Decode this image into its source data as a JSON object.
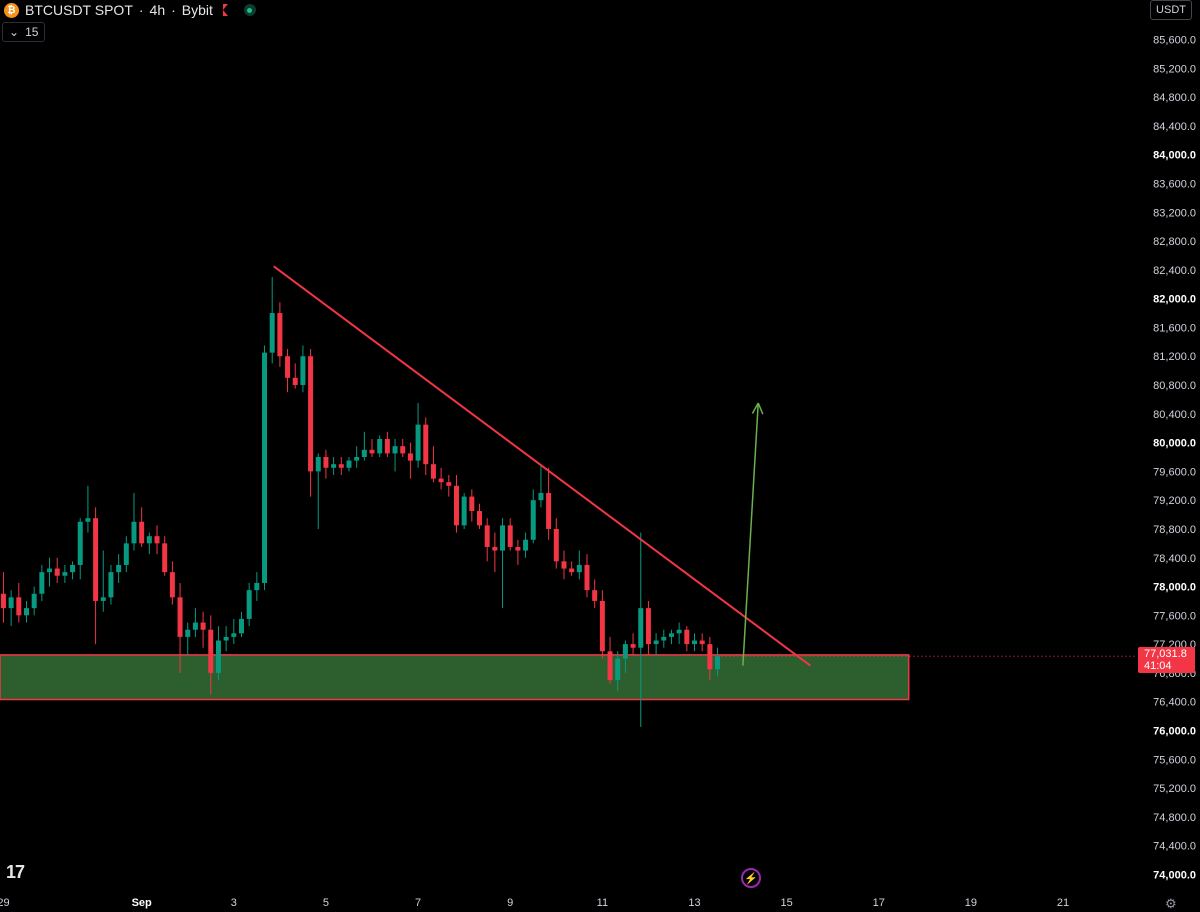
{
  "header": {
    "symbol": "BTCUSDT SPOT",
    "interval": "4h",
    "exchange": "Bybit",
    "separator": "·",
    "coin_glyph": "₿",
    "indicator_count": "15",
    "currency": "USDT",
    "logo": "17"
  },
  "colors": {
    "background": "#000000",
    "up": "#089981",
    "down": "#f23645",
    "zone_fill": "#2c5e2e",
    "zone_border": "#f23645",
    "trendline": "#f23645",
    "arrow": "#6ab04c",
    "axis_text": "#d1d4dc"
  },
  "chart_data": {
    "type": "candlestick",
    "title": "BTCUSDT SPOT · 4h · Bybit",
    "ylim": [
      73700,
      86150
    ],
    "y_ticks": [
      74000,
      74400,
      74800,
      75200,
      75600,
      76000,
      76400,
      76800,
      77200,
      77600,
      78000,
      78400,
      78800,
      79200,
      79600,
      80000,
      80400,
      80800,
      81200,
      81600,
      82000,
      82400,
      82800,
      83200,
      83600,
      84000,
      84400,
      84800,
      85200,
      85600
    ],
    "y_tick_labels": [
      "74,000.0",
      "74,400.0",
      "74,800.0",
      "75,200.0",
      "75,600.0",
      "76,000.0",
      "76,400.0",
      "76,800.0",
      "77,200.0",
      "77,600.0",
      "78,000.0",
      "78,400.0",
      "78,800.0",
      "79,200.0",
      "79,600.0",
      "80,000.0",
      "80,400.0",
      "80,800.0",
      "81,200.0",
      "81,600.0",
      "82,000.0",
      "82,400.0",
      "82,800.0",
      "83,200.0",
      "83,600.0",
      "84,000.0",
      "84,400.0",
      "84,800.0",
      "85,200.0",
      "85,600.0"
    ],
    "y_bold_ticks": [
      "74,000.0",
      "76,000.0",
      "78,000.0",
      "80,000.0",
      "82,000.0",
      "84,000.0"
    ],
    "x_ticks": [
      {
        "label": "29",
        "t": 0,
        "bold": false
      },
      {
        "label": "Sep",
        "t": 18,
        "bold": true
      },
      {
        "label": "3",
        "t": 30,
        "bold": false
      },
      {
        "label": "5",
        "t": 42,
        "bold": false
      },
      {
        "label": "7",
        "t": 54,
        "bold": false
      },
      {
        "label": "9",
        "t": 66,
        "bold": false
      },
      {
        "label": "11",
        "t": 78,
        "bold": false
      },
      {
        "label": "13",
        "t": 90,
        "bold": false
      },
      {
        "label": "15",
        "t": 102,
        "bold": false
      },
      {
        "label": "17",
        "t": 114,
        "bold": false
      },
      {
        "label": "19",
        "t": 126,
        "bold": false
      },
      {
        "label": "21",
        "t": 138,
        "bold": false
      }
    ],
    "x_range": [
      -0.45,
      147.5
    ],
    "candles": [
      {
        "t": 0,
        "o": 77900,
        "h": 78200,
        "l": 77500,
        "c": 77700
      },
      {
        "t": 1,
        "o": 77700,
        "h": 77950,
        "l": 77450,
        "c": 77850
      },
      {
        "t": 2,
        "o": 77850,
        "h": 78050,
        "l": 77500,
        "c": 77600
      },
      {
        "t": 3,
        "o": 77600,
        "h": 77800,
        "l": 77500,
        "c": 77700
      },
      {
        "t": 4,
        "o": 77700,
        "h": 78000,
        "l": 77600,
        "c": 77900
      },
      {
        "t": 5,
        "o": 77900,
        "h": 78300,
        "l": 77800,
        "c": 78200
      },
      {
        "t": 6,
        "o": 78200,
        "h": 78400,
        "l": 78000,
        "c": 78250
      },
      {
        "t": 7,
        "o": 78250,
        "h": 78400,
        "l": 78050,
        "c": 78150
      },
      {
        "t": 8,
        "o": 78150,
        "h": 78300,
        "l": 78050,
        "c": 78200
      },
      {
        "t": 9,
        "o": 78200,
        "h": 78350,
        "l": 78100,
        "c": 78300
      },
      {
        "t": 10,
        "o": 78300,
        "h": 78950,
        "l": 78100,
        "c": 78900
      },
      {
        "t": 11,
        "o": 78900,
        "h": 79400,
        "l": 78750,
        "c": 78950
      },
      {
        "t": 12,
        "o": 78950,
        "h": 79100,
        "l": 77200,
        "c": 77800
      },
      {
        "t": 13,
        "o": 77800,
        "h": 78500,
        "l": 77650,
        "c": 77850
      },
      {
        "t": 14,
        "o": 77850,
        "h": 78300,
        "l": 77750,
        "c": 78200
      },
      {
        "t": 15,
        "o": 78200,
        "h": 78450,
        "l": 78050,
        "c": 78300
      },
      {
        "t": 16,
        "o": 78300,
        "h": 78700,
        "l": 78200,
        "c": 78600
      },
      {
        "t": 17,
        "o": 78600,
        "h": 79300,
        "l": 78500,
        "c": 78900
      },
      {
        "t": 18,
        "o": 78900,
        "h": 79100,
        "l": 78550,
        "c": 78600
      },
      {
        "t": 19,
        "o": 78600,
        "h": 78750,
        "l": 78450,
        "c": 78700
      },
      {
        "t": 20,
        "o": 78700,
        "h": 78850,
        "l": 78450,
        "c": 78600
      },
      {
        "t": 21,
        "o": 78600,
        "h": 78700,
        "l": 78150,
        "c": 78200
      },
      {
        "t": 22,
        "o": 78200,
        "h": 78350,
        "l": 77750,
        "c": 77850
      },
      {
        "t": 23,
        "o": 77850,
        "h": 78050,
        "l": 76800,
        "c": 77300
      },
      {
        "t": 24,
        "o": 77300,
        "h": 77500,
        "l": 77050,
        "c": 77400
      },
      {
        "t": 25,
        "o": 77400,
        "h": 77700,
        "l": 77300,
        "c": 77500
      },
      {
        "t": 26,
        "o": 77500,
        "h": 77650,
        "l": 77150,
        "c": 77400
      },
      {
        "t": 27,
        "o": 77400,
        "h": 77600,
        "l": 76500,
        "c": 76800
      },
      {
        "t": 28,
        "o": 76800,
        "h": 77450,
        "l": 76700,
        "c": 77250
      },
      {
        "t": 29,
        "o": 77250,
        "h": 77450,
        "l": 77100,
        "c": 77300
      },
      {
        "t": 30,
        "o": 77300,
        "h": 77550,
        "l": 77200,
        "c": 77350
      },
      {
        "t": 31,
        "o": 77350,
        "h": 77650,
        "l": 77300,
        "c": 77550
      },
      {
        "t": 32,
        "o": 77550,
        "h": 78050,
        "l": 77450,
        "c": 77950
      },
      {
        "t": 33,
        "o": 77950,
        "h": 78200,
        "l": 77800,
        "c": 78050
      },
      {
        "t": 34,
        "o": 78050,
        "h": 81350,
        "l": 77950,
        "c": 81250
      },
      {
        "t": 35,
        "o": 81250,
        "h": 82300,
        "l": 81100,
        "c": 81800
      },
      {
        "t": 36,
        "o": 81800,
        "h": 81950,
        "l": 81050,
        "c": 81200
      },
      {
        "t": 37,
        "o": 81200,
        "h": 81300,
        "l": 80700,
        "c": 80900
      },
      {
        "t": 38,
        "o": 80900,
        "h": 81100,
        "l": 80750,
        "c": 80800
      },
      {
        "t": 39,
        "o": 80800,
        "h": 81350,
        "l": 80700,
        "c": 81200
      },
      {
        "t": 40,
        "o": 81200,
        "h": 81300,
        "l": 79250,
        "c": 79600
      },
      {
        "t": 41,
        "o": 79600,
        "h": 79850,
        "l": 78800,
        "c": 79800
      },
      {
        "t": 42,
        "o": 79800,
        "h": 79900,
        "l": 79500,
        "c": 79650
      },
      {
        "t": 43,
        "o": 79650,
        "h": 79800,
        "l": 79550,
        "c": 79700
      },
      {
        "t": 44,
        "o": 79700,
        "h": 79800,
        "l": 79550,
        "c": 79650
      },
      {
        "t": 45,
        "o": 79650,
        "h": 79800,
        "l": 79600,
        "c": 79750
      },
      {
        "t": 46,
        "o": 79750,
        "h": 79950,
        "l": 79650,
        "c": 79800
      },
      {
        "t": 47,
        "o": 79800,
        "h": 80150,
        "l": 79750,
        "c": 79900
      },
      {
        "t": 48,
        "o": 79900,
        "h": 80050,
        "l": 79800,
        "c": 79850
      },
      {
        "t": 49,
        "o": 79850,
        "h": 80100,
        "l": 79800,
        "c": 80050
      },
      {
        "t": 50,
        "o": 80050,
        "h": 80150,
        "l": 79800,
        "c": 79850
      },
      {
        "t": 51,
        "o": 79850,
        "h": 80050,
        "l": 79600,
        "c": 79950
      },
      {
        "t": 52,
        "o": 79950,
        "h": 80050,
        "l": 79800,
        "c": 79850
      },
      {
        "t": 53,
        "o": 79850,
        "h": 80000,
        "l": 79500,
        "c": 79750
      },
      {
        "t": 54,
        "o": 79750,
        "h": 80550,
        "l": 79650,
        "c": 80250
      },
      {
        "t": 55,
        "o": 80250,
        "h": 80350,
        "l": 79550,
        "c": 79700
      },
      {
        "t": 56,
        "o": 79700,
        "h": 79950,
        "l": 79450,
        "c": 79500
      },
      {
        "t": 57,
        "o": 79500,
        "h": 79650,
        "l": 79350,
        "c": 79450
      },
      {
        "t": 58,
        "o": 79450,
        "h": 79550,
        "l": 79250,
        "c": 79400
      },
      {
        "t": 59,
        "o": 79400,
        "h": 79550,
        "l": 78750,
        "c": 78850
      },
      {
        "t": 60,
        "o": 78850,
        "h": 79300,
        "l": 78800,
        "c": 79250
      },
      {
        "t": 61,
        "o": 79250,
        "h": 79350,
        "l": 78900,
        "c": 79050
      },
      {
        "t": 62,
        "o": 79050,
        "h": 79150,
        "l": 78800,
        "c": 78850
      },
      {
        "t": 63,
        "o": 78850,
        "h": 78950,
        "l": 78350,
        "c": 78550
      },
      {
        "t": 64,
        "o": 78550,
        "h": 78750,
        "l": 78200,
        "c": 78500
      },
      {
        "t": 65,
        "o": 78500,
        "h": 78950,
        "l": 77700,
        "c": 78850
      },
      {
        "t": 66,
        "o": 78850,
        "h": 78950,
        "l": 78500,
        "c": 78550
      },
      {
        "t": 67,
        "o": 78550,
        "h": 78650,
        "l": 78300,
        "c": 78500
      },
      {
        "t": 68,
        "o": 78500,
        "h": 78750,
        "l": 78400,
        "c": 78650
      },
      {
        "t": 69,
        "o": 78650,
        "h": 79350,
        "l": 78600,
        "c": 79200
      },
      {
        "t": 70,
        "o": 79200,
        "h": 79700,
        "l": 79100,
        "c": 79300
      },
      {
        "t": 71,
        "o": 79300,
        "h": 79650,
        "l": 78650,
        "c": 78800
      },
      {
        "t": 72,
        "o": 78800,
        "h": 78950,
        "l": 78250,
        "c": 78350
      },
      {
        "t": 73,
        "o": 78350,
        "h": 78500,
        "l": 78100,
        "c": 78250
      },
      {
        "t": 74,
        "o": 78250,
        "h": 78350,
        "l": 78150,
        "c": 78200
      },
      {
        "t": 75,
        "o": 78200,
        "h": 78500,
        "l": 78100,
        "c": 78300
      },
      {
        "t": 76,
        "o": 78300,
        "h": 78450,
        "l": 77850,
        "c": 77950
      },
      {
        "t": 77,
        "o": 77950,
        "h": 78100,
        "l": 77700,
        "c": 77800
      },
      {
        "t": 78,
        "o": 77800,
        "h": 77950,
        "l": 77000,
        "c": 77100
      },
      {
        "t": 79,
        "o": 77100,
        "h": 77300,
        "l": 76650,
        "c": 76700
      },
      {
        "t": 80,
        "o": 76700,
        "h": 77100,
        "l": 76550,
        "c": 77000
      },
      {
        "t": 81,
        "o": 77000,
        "h": 77250,
        "l": 76800,
        "c": 77200
      },
      {
        "t": 82,
        "o": 77200,
        "h": 77350,
        "l": 77050,
        "c": 77150
      },
      {
        "t": 83,
        "o": 77150,
        "h": 78750,
        "l": 76050,
        "c": 77700
      },
      {
        "t": 84,
        "o": 77700,
        "h": 77800,
        "l": 77050,
        "c": 77200
      },
      {
        "t": 85,
        "o": 77200,
        "h": 77350,
        "l": 77050,
        "c": 77250
      },
      {
        "t": 86,
        "o": 77250,
        "h": 77400,
        "l": 77150,
        "c": 77300
      },
      {
        "t": 87,
        "o": 77300,
        "h": 77400,
        "l": 77200,
        "c": 77350
      },
      {
        "t": 88,
        "o": 77350,
        "h": 77500,
        "l": 77200,
        "c": 77400
      },
      {
        "t": 89,
        "o": 77400,
        "h": 77450,
        "l": 77100,
        "c": 77200
      },
      {
        "t": 90,
        "o": 77200,
        "h": 77350,
        "l": 77100,
        "c": 77250
      },
      {
        "t": 91,
        "o": 77250,
        "h": 77350,
        "l": 77100,
        "c": 77200
      },
      {
        "t": 92,
        "o": 77200,
        "h": 77300,
        "l": 76700,
        "c": 76850
      },
      {
        "t": 93,
        "o": 76850,
        "h": 77150,
        "l": 76750,
        "c": 77032
      }
    ],
    "current_price": "77,031.8",
    "current_price_value": 77031.8,
    "countdown": "41:04",
    "support_zone": {
      "t_start": -0.45,
      "t_end": 117.9,
      "y_low": 76430,
      "y_high": 77050
    },
    "trendline": {
      "p1": {
        "t": 35.2,
        "y": 82450
      },
      "p2": {
        "t": 105.1,
        "y": 76900
      }
    },
    "projection_arrow": {
      "p1": {
        "t": 96.3,
        "y": 76900
      },
      "p2": {
        "t": 98.3,
        "y": 80550
      }
    }
  }
}
